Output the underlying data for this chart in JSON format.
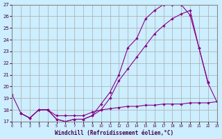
{
  "xlabel": "Windchill (Refroidissement éolien,°C)",
  "background_color": "#cceeff",
  "grid_color": "#aaaaaa",
  "line_color": "#880088",
  "ylim": [
    17,
    27
  ],
  "xlim": [
    0,
    23
  ],
  "y1_x": [
    0,
    1,
    2,
    3,
    4,
    5,
    6,
    7,
    8,
    9,
    10,
    11,
    12,
    13,
    14,
    15,
    16,
    17,
    18,
    19,
    20,
    21,
    22
  ],
  "y1_y": [
    19.3,
    17.7,
    17.3,
    18.0,
    18.0,
    17.2,
    17.0,
    17.2,
    17.2,
    17.5,
    18.5,
    19.5,
    21.0,
    23.3,
    24.1,
    25.8,
    26.5,
    27.0,
    27.0,
    27.0,
    26.1,
    23.3,
    20.4
  ],
  "y2_x": [
    1,
    2,
    3,
    4,
    5,
    6,
    7,
    8,
    9,
    10,
    11,
    12,
    13,
    14,
    15,
    16,
    17,
    18,
    19,
    20,
    21,
    22,
    23
  ],
  "y2_y": [
    17.7,
    17.3,
    18.0,
    18.0,
    17.2,
    17.0,
    17.2,
    17.2,
    17.5,
    18.0,
    19.0,
    20.5,
    21.5,
    22.5,
    23.5,
    24.5,
    25.2,
    25.8,
    26.2,
    26.5,
    23.3,
    20.3,
    18.7
  ],
  "y3_x": [
    1,
    2,
    3,
    4,
    5,
    6,
    7,
    8,
    9,
    10,
    11,
    12,
    13,
    14,
    15,
    16,
    17,
    18,
    19,
    20,
    21,
    22,
    23
  ],
  "y3_y": [
    17.7,
    17.3,
    18.0,
    18.0,
    17.5,
    17.5,
    17.5,
    17.5,
    17.8,
    18.0,
    18.1,
    18.2,
    18.3,
    18.3,
    18.4,
    18.4,
    18.5,
    18.5,
    18.5,
    18.6,
    18.6,
    18.6,
    18.7
  ]
}
